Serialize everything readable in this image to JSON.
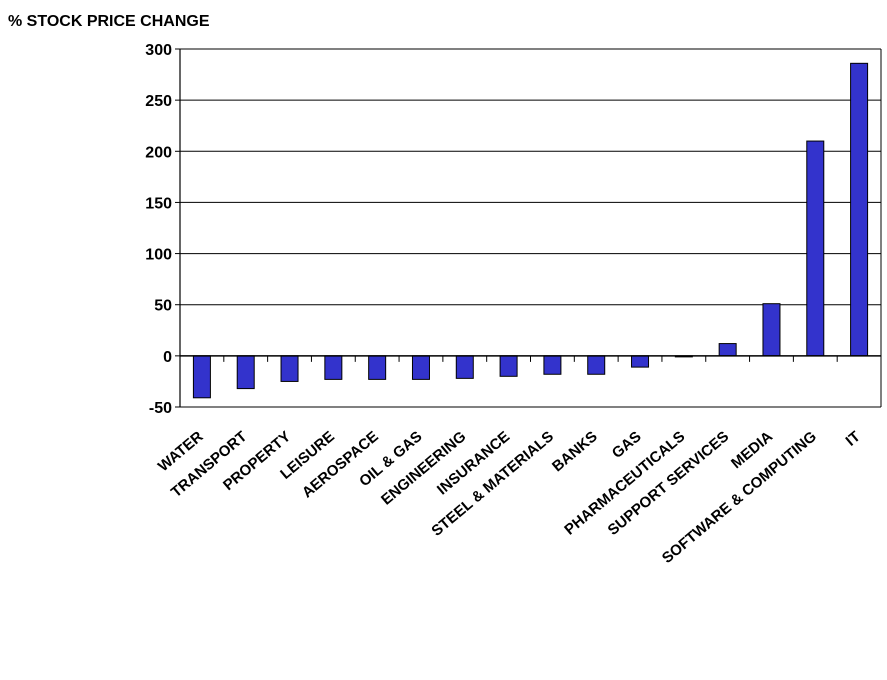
{
  "chart_data": {
    "type": "bar",
    "title": "",
    "ylabel": "% STOCK PRICE CHANGE",
    "xlabel": "",
    "categories": [
      "WATER",
      "TRANSPORT",
      "PROPERTY",
      "LEISURE",
      "AEROSPACE",
      "OIL & GAS",
      "ENGINEERING",
      "INSURANCE",
      "STEEL & MATERIALS",
      "BANKS",
      "GAS",
      "PHARMACEUTICALS",
      "SUPPORT SERVICES",
      "MEDIA",
      "SOFTWARE & COMPUTING",
      "IT"
    ],
    "values": [
      -41,
      -32,
      -25,
      -23,
      -23,
      -23,
      -22,
      -20,
      -18,
      -18,
      -11,
      -1,
      12,
      51,
      210,
      286
    ],
    "ylim": [
      -50,
      300
    ],
    "yticks": [
      "300",
      "250",
      "200",
      "150",
      "100",
      "50",
      "0",
      "-50"
    ],
    "grid": true,
    "legend": "none",
    "bar_color": "#3333cc"
  }
}
